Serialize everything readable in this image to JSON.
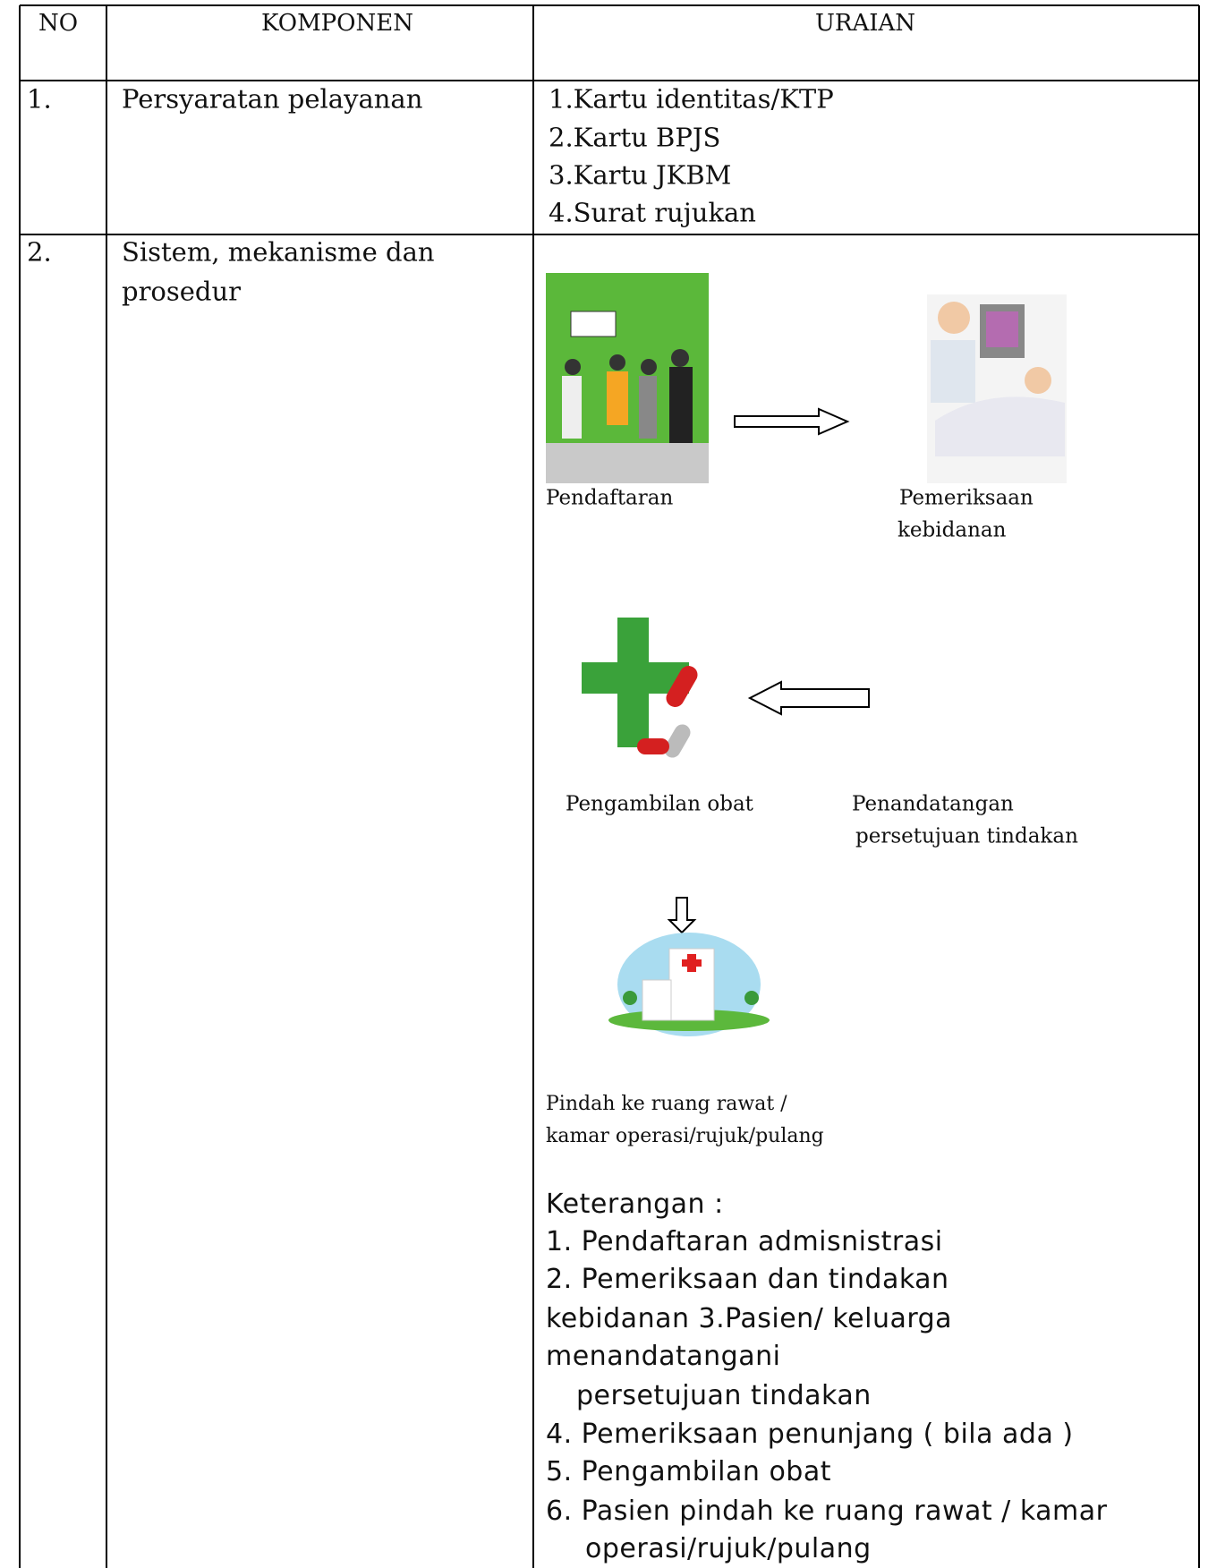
{
  "table": {
    "header": [
      "NO",
      "KOMPONEN",
      "URAIAN"
    ],
    "rows": [
      {
        "no": "1.",
        "komponen": [
          "Persyaratan pelayanan"
        ],
        "uraian": [
          "1.Kartu identitas/KTP",
          "2.Kartu BPJS",
          "3.Kartu JKBM",
          "4.Surat rujukan"
        ]
      },
      {
        "no": "2.",
        "komponen": [
          "Sistem, mekanisme dan",
          "prosedur"
        ],
        "flow": [
          {
            "label": [
              "Pendaftaran"
            ]
          },
          {
            "label": [
              "Pemeriksaan",
              "kebidanan"
            ]
          },
          {
            "label": [
              "Pengambilan obat"
            ]
          },
          {
            "label": [
              "Penandatangan",
              "persetujuan tindakan"
            ]
          },
          {
            "label": [
              "Pindah ke ruang rawat /",
              "kamar operasi/rujuk/pulang"
            ]
          }
        ],
        "keterangan": [
          "Keterangan :",
          "1. Pendaftaran admisnistrasi",
          "2. Pemeriksaan dan tindakan",
          "kebidanan 3.Pasien/ keluarga",
          "menandatangani",
          "persetujuan tindakan",
          "4. Pemeriksaan penunjang ( bila ada )",
          "5. Pengambilan obat",
          "6. Pasien pindah ke ruang rawat / kamar",
          "operasi/rujuk/pulang"
        ]
      }
    ]
  }
}
